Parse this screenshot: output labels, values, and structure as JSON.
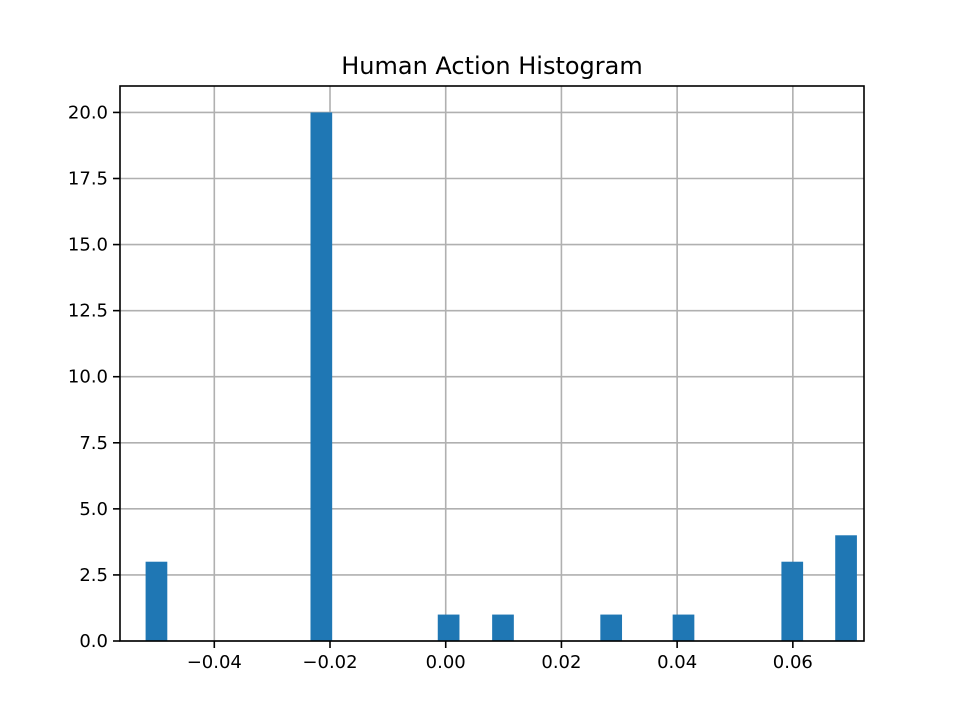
{
  "chart_data": {
    "type": "bar",
    "title": "Human Action Histogram",
    "xlabel": "",
    "ylabel": "",
    "xlim": [
      -0.0563,
      0.0723
    ],
    "ylim": [
      0,
      21
    ],
    "grid": true,
    "bar_color": "#1f77b4",
    "bin_width": 0.00375,
    "x_ticks": [
      {
        "value": -0.04,
        "label": "−0.04"
      },
      {
        "value": -0.02,
        "label": "−0.02"
      },
      {
        "value": 0.0,
        "label": "0.00"
      },
      {
        "value": 0.02,
        "label": "0.02"
      },
      {
        "value": 0.04,
        "label": "0.04"
      },
      {
        "value": 0.06,
        "label": "0.06"
      }
    ],
    "y_ticks": [
      {
        "value": 0.0,
        "label": "0.0"
      },
      {
        "value": 2.5,
        "label": "2.5"
      },
      {
        "value": 5.0,
        "label": "5.0"
      },
      {
        "value": 7.5,
        "label": "7.5"
      },
      {
        "value": 10.0,
        "label": "10.0"
      },
      {
        "value": 12.5,
        "label": "12.5"
      },
      {
        "value": 15.0,
        "label": "15.0"
      },
      {
        "value": 17.5,
        "label": "17.5"
      },
      {
        "value": 20.0,
        "label": "20.0"
      }
    ],
    "bars": [
      {
        "x": -0.05,
        "count": 3
      },
      {
        "x": -0.0215,
        "count": 20
      },
      {
        "x": 0.0005,
        "count": 1
      },
      {
        "x": 0.0099,
        "count": 1
      },
      {
        "x": 0.0286,
        "count": 1
      },
      {
        "x": 0.0411,
        "count": 1
      },
      {
        "x": 0.0599,
        "count": 3
      },
      {
        "x": 0.0692,
        "count": 4
      }
    ]
  }
}
